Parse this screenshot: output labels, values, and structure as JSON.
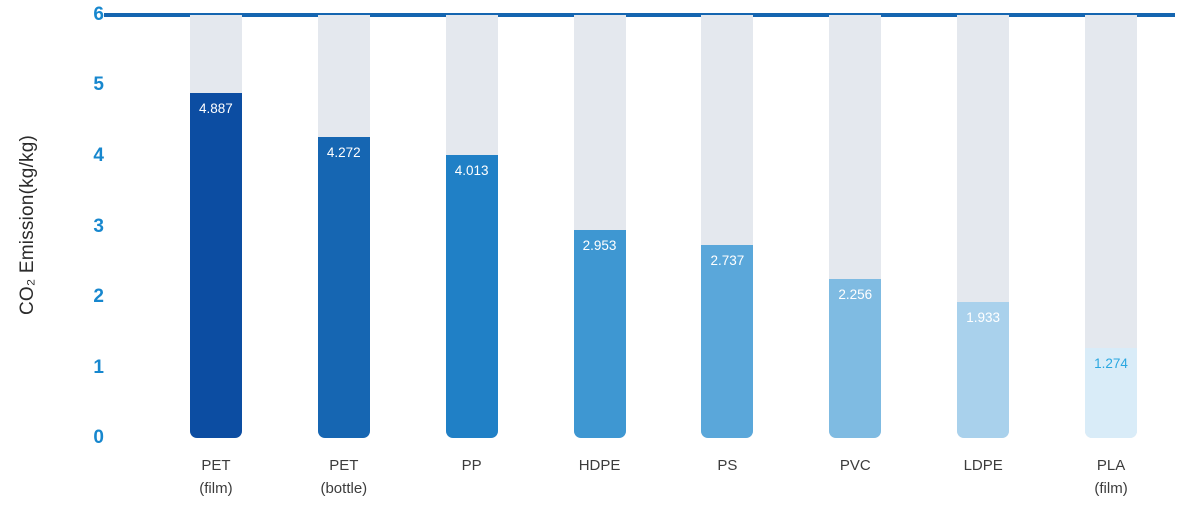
{
  "chart_data": {
    "type": "bar",
    "title": "",
    "ylabel": "CO₂ Emission(kg/kg)",
    "xlabel": "",
    "categories": [
      "PET\n(film)",
      "PET\n(bottle)",
      "PP",
      "HDPE",
      "PS",
      "PVC",
      "LDPE",
      "PLA\n(film)"
    ],
    "values": [
      4.887,
      4.272,
      4.013,
      2.953,
      2.737,
      2.256,
      1.933,
      1.274
    ],
    "value_labels": [
      "4.887",
      "4.272",
      "4.013",
      "2.953",
      "2.737",
      "2.256",
      "1.933",
      "1.274"
    ],
    "bar_colors": [
      "#0c4da2",
      "#1666b2",
      "#2080c6",
      "#3e97d2",
      "#5aa7da",
      "#7fbbe2",
      "#a9d1ec",
      "#d9ecf8"
    ],
    "value_label_colors": [
      "#ffffff",
      "#ffffff",
      "#ffffff",
      "#ffffff",
      "#ffffff",
      "#ffffff",
      "#ffffff",
      "#2aa7e0"
    ],
    "ylim": [
      0,
      6
    ],
    "yticks": [
      0,
      1,
      2,
      3,
      4,
      5,
      6
    ],
    "grid": false,
    "legend": "none",
    "track_color": "#e4e8ee",
    "axis_line_color": "#1565b0",
    "tick_color": "#1787ce"
  }
}
